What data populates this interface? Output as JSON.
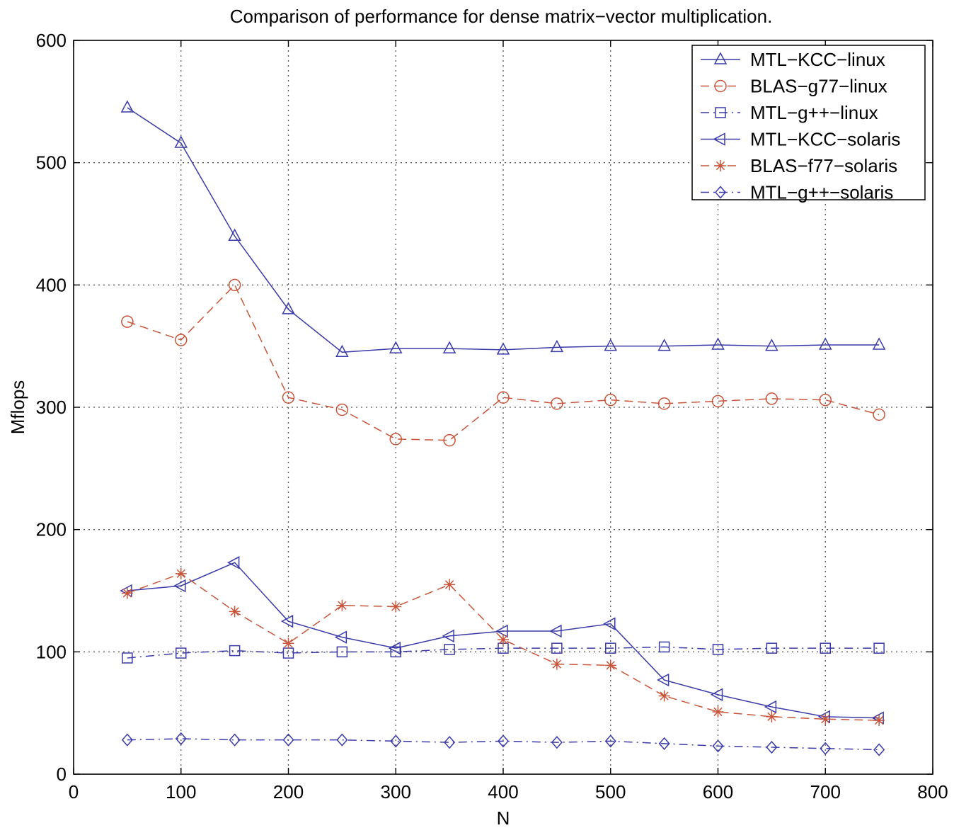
{
  "chart_data": {
    "type": "line",
    "title": "Comparison of performance for dense matrix−vector multiplication.",
    "xlabel": "N",
    "ylabel": "Mflops",
    "xlim": [
      0,
      800
    ],
    "ylim": [
      0,
      600
    ],
    "xticks": [
      0,
      100,
      200,
      300,
      400,
      500,
      600,
      700,
      800
    ],
    "yticks": [
      0,
      100,
      200,
      300,
      400,
      500,
      600
    ],
    "grid": true,
    "legend_position": "top-right",
    "x": [
      50,
      100,
      150,
      200,
      250,
      300,
      350,
      400,
      450,
      500,
      550,
      600,
      650,
      700,
      750
    ],
    "series": [
      {
        "name": "MTL−KCC−linux",
        "color": "#3a3aa8",
        "dash": "solid",
        "marker": "triangle-up",
        "values": [
          545,
          516,
          440,
          380,
          345,
          348,
          348,
          347,
          349,
          350,
          350,
          351,
          350,
          351,
          351
        ]
      },
      {
        "name": "BLAS−g77−linux",
        "color": "#c8553a",
        "dash": "dashed",
        "marker": "circle",
        "values": [
          370,
          355,
          400,
          308,
          298,
          274,
          273,
          308,
          303,
          306,
          303,
          305,
          307,
          306,
          294
        ]
      },
      {
        "name": "MTL−g++−linux",
        "color": "#3a3aa8",
        "dash": "dashdot",
        "marker": "square",
        "values": [
          95,
          99,
          101,
          99,
          100,
          100,
          102,
          103,
          103,
          103,
          104,
          102,
          103,
          103,
          103
        ]
      },
      {
        "name": "MTL−KCC−solaris",
        "color": "#3a3aa8",
        "dash": "solid",
        "marker": "triangle-left",
        "values": [
          150,
          154,
          173,
          125,
          112,
          103,
          113,
          117,
          117,
          123,
          77,
          65,
          55,
          47,
          46
        ]
      },
      {
        "name": "BLAS−f77−solaris",
        "color": "#c8553a",
        "dash": "dashed",
        "marker": "star",
        "values": [
          148,
          164,
          133,
          107,
          138,
          137,
          155,
          110,
          90,
          89,
          64,
          51,
          47,
          45,
          44
        ]
      },
      {
        "name": "MTL−g++−solaris",
        "color": "#3a3aa8",
        "dash": "dashdot",
        "marker": "diamond",
        "values": [
          28,
          29,
          28,
          28,
          28,
          27,
          26,
          27,
          26,
          27,
          25,
          23,
          22,
          21,
          20
        ]
      }
    ]
  }
}
